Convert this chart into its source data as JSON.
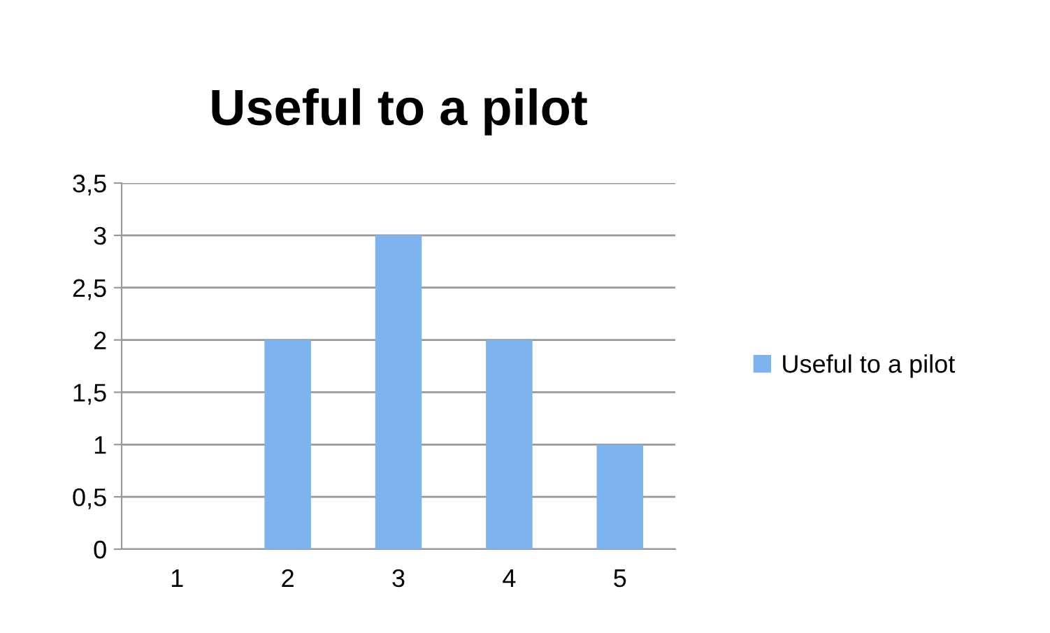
{
  "chart_data": {
    "type": "bar",
    "title": "Useful to a pilot",
    "categories": [
      "1",
      "2",
      "3",
      "4",
      "5"
    ],
    "series": [
      {
        "name": "Useful to a pilot",
        "color": "#7db3ee",
        "values": [
          0,
          2,
          3,
          2,
          1
        ]
      }
    ],
    "ylim": [
      0,
      3.5
    ],
    "yticks": [
      0,
      {
        "value": 0.5,
        "label": "0,5"
      },
      1,
      {
        "value": 1.5,
        "label": "1,5"
      },
      2,
      {
        "value": 2.5,
        "label": "2,5"
      },
      3,
      {
        "value": 3.5,
        "label": "3,5"
      }
    ],
    "grid": "y",
    "legend": "right"
  }
}
